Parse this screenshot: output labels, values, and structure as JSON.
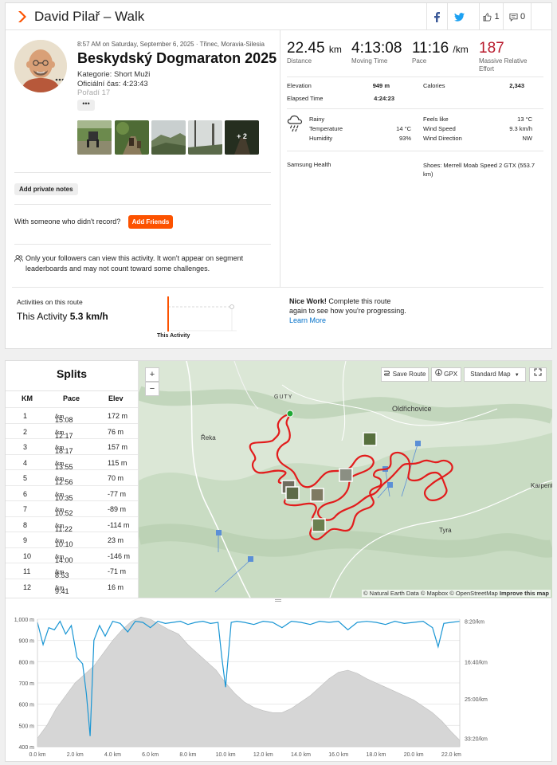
{
  "header": {
    "title": "David Pilař – Walk",
    "kudos_count": "1",
    "comment_count": "0"
  },
  "activity": {
    "date": "8:57 AM on Saturday, September 6, 2025 · Třinec, Moravia-Silesia",
    "name": "Beskydský Dogmaraton 2025",
    "description_lines": [
      "Kategorie: Short Muži",
      "Oficiální čas: 4:23:43",
      "Pořadí 17"
    ],
    "more_label": "•••",
    "photos_extra": "+ 2"
  },
  "notes_label": "Add private notes",
  "with_someone_text": "With someone who didn't record?",
  "add_friends_label": "Add Friends",
  "privacy_text": "Only your followers can view this activity. It won't appear on segment leaderboards and may not count toward some challenges.",
  "stats": {
    "distance": {
      "value": "22.45",
      "unit": "km",
      "label": "Distance"
    },
    "moving_time": {
      "value": "4:13:08",
      "label": "Moving Time"
    },
    "pace": {
      "value": "11:16",
      "unit": "/km",
      "label": "Pace"
    },
    "effort": {
      "value": "187",
      "label": "Massive Relative Effort"
    },
    "elevation": {
      "label": "Elevation",
      "value": "949 m"
    },
    "calories": {
      "label": "Calories",
      "value": "2,343"
    },
    "elapsed": {
      "label": "Elapsed Time",
      "value": "4:24:23"
    }
  },
  "weather": {
    "condition": "Rainy",
    "temperature_label": "Temperature",
    "temperature": "14 °C",
    "humidity_label": "Humidity",
    "humidity": "93%",
    "feels_like_label": "Feels like",
    "feels_like": "13 °C",
    "wind_speed_label": "Wind Speed",
    "wind_speed": "9.3 km/h",
    "wind_dir_label": "Wind Direction",
    "wind_dir": "NW"
  },
  "device": "Samsung Health",
  "shoes": "Shoes: Merrell Moab Speed 2 GTX (553.7 km)",
  "route": {
    "label": "Activities on this route",
    "this_activity": "This Activity",
    "speed": "5.3 km/h",
    "bar_label": "This Activity",
    "nice_bold": "Nice Work!",
    "nice_text": " Complete this route again to see how you're progressing.",
    "learn_more": "Learn More"
  },
  "splits": {
    "title": "Splits",
    "headers": [
      "KM",
      "Pace",
      "Elev"
    ],
    "unit": "/km",
    "rows": [
      {
        "km": "1",
        "pace": "15:08",
        "elev": "172 m"
      },
      {
        "km": "2",
        "pace": "12:17",
        "elev": "76 m"
      },
      {
        "km": "3",
        "pace": "18:17",
        "elev": "157 m"
      },
      {
        "km": "4",
        "pace": "13:55",
        "elev": "115 m"
      },
      {
        "km": "5",
        "pace": "12:56",
        "elev": "70 m"
      },
      {
        "km": "6",
        "pace": "10:35",
        "elev": "-77 m"
      },
      {
        "km": "7",
        "pace": "10:52",
        "elev": "-89 m"
      },
      {
        "km": "8",
        "pace": "11:22",
        "elev": "-114 m"
      },
      {
        "km": "9",
        "pace": "10:10",
        "elev": "23 m"
      },
      {
        "km": "10",
        "pace": "14:00",
        "elev": "-146 m"
      },
      {
        "km": "11",
        "pace": "8:53",
        "elev": "-71 m"
      },
      {
        "km": "12",
        "pace": "9:41",
        "elev": "16 m"
      }
    ]
  },
  "map": {
    "zoom_in": "+",
    "zoom_out": "−",
    "save_route": "Save Route",
    "gpx": "GPX",
    "map_style": "Standard Map",
    "credit": "© Natural Earth Data © Mapbox © OpenStreetMap",
    "improve": "Improve this map",
    "places": [
      "GUTY",
      "Oldřichovice",
      "Řeka",
      "Tyra",
      "Karpentná"
    ]
  },
  "colors": {
    "accent": "#fc5200",
    "route": "#e21c1c",
    "pace_line": "#1a96d4",
    "effort": "#b8192b",
    "link": "#0070c9"
  },
  "chart_data": {
    "type": "area",
    "x_unit": "km",
    "x_ticks": [
      "0.0 km",
      "2.0 km",
      "4.0 km",
      "6.0 km",
      "8.0 km",
      "10.0 km",
      "12.0 km",
      "14.0 km",
      "16.0 km",
      "18.0 km",
      "20.0 km",
      "22.0 km"
    ],
    "y_left_ticks": [
      "1,000 m",
      "900 m",
      "800 m",
      "700 m",
      "600 m",
      "500 m",
      "400 m"
    ],
    "y_right_ticks": [
      "8:20/km",
      "16:40/km",
      "25:00/km",
      "33:20/km"
    ],
    "xlim": [
      0,
      22.45
    ],
    "ylim": [
      400,
      1000
    ],
    "series": [
      {
        "type": "area",
        "x": [
          0,
          0.5,
          1,
          1.5,
          2,
          2.5,
          3,
          3.5,
          4,
          4.5,
          5,
          5.5,
          6,
          6.5,
          7,
          7.5,
          8,
          8.5,
          9,
          9.5,
          10,
          10.5,
          11,
          11.5,
          12,
          12.5,
          13,
          13.5,
          14,
          14.5,
          15,
          15.5,
          16,
          16.5,
          17,
          17.5,
          18,
          18.5,
          19,
          19.5,
          20,
          20.5,
          21,
          21.5,
          22,
          22.45
        ],
        "values": [
          440,
          500,
          580,
          640,
          700,
          740,
          780,
          840,
          900,
          950,
          990,
          1010,
          1000,
          975,
          950,
          930,
          880,
          840,
          800,
          760,
          700,
          650,
          610,
          585,
          570,
          560,
          560,
          580,
          610,
          640,
          680,
          720,
          750,
          760,
          745,
          720,
          700,
          680,
          660,
          640,
          620,
          590,
          560,
          520,
          470,
          430
        ]
      },
      {
        "type": "line",
        "x": [
          0,
          0.3,
          0.6,
          0.9,
          1.2,
          1.5,
          1.8,
          2.1,
          2.4,
          2.6,
          2.8,
          3.0,
          3.3,
          3.6,
          4.0,
          4.4,
          4.8,
          5.2,
          5.6,
          6.0,
          6.4,
          6.8,
          7.2,
          7.6,
          8.0,
          8.4,
          8.8,
          9.2,
          9.6,
          9.8,
          10.0,
          10.3,
          10.6,
          11.0,
          11.5,
          12.0,
          12.5,
          13.0,
          13.5,
          14.0,
          14.5,
          15.0,
          15.5,
          16.0,
          16.5,
          17.0,
          17.5,
          18.0,
          18.5,
          19.0,
          19.5,
          20.0,
          20.5,
          21.0,
          21.3,
          21.6,
          22.0,
          22.45
        ],
        "values": [
          985,
          880,
          960,
          950,
          990,
          930,
          970,
          820,
          790,
          650,
          450,
          900,
          970,
          920,
          990,
          980,
          940,
          990,
          985,
          960,
          990,
          980,
          985,
          990,
          975,
          985,
          990,
          980,
          985,
          820,
          680,
          985,
          990,
          985,
          975,
          990,
          985,
          960,
          990,
          985,
          975,
          990,
          985,
          990,
          950,
          985,
          990,
          985,
          975,
          990,
          980,
          985,
          990,
          960,
          870,
          980,
          985,
          990
        ]
      }
    ]
  }
}
